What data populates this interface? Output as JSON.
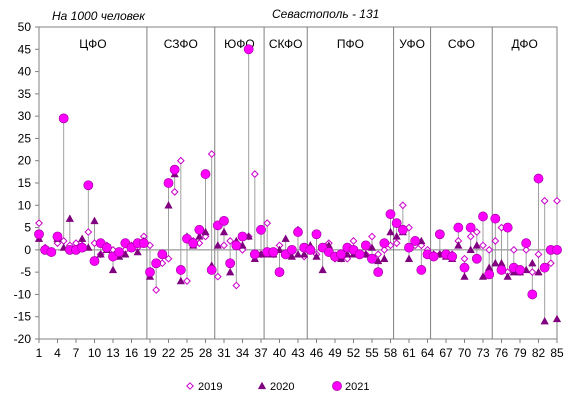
{
  "chart_data": {
    "type": "scatter",
    "title": "",
    "annotations": {
      "left": "На 1000 человек",
      "right": "Севастополь - 131"
    },
    "xlabel": "",
    "ylabel": "",
    "xlim": [
      1,
      85
    ],
    "ylim": [
      -20,
      50
    ],
    "y_ticks": [
      -20,
      -15,
      -10,
      -5,
      0,
      5,
      10,
      15,
      20,
      25,
      30,
      35,
      40,
      45,
      50
    ],
    "x_ticks": [
      1,
      4,
      7,
      10,
      13,
      16,
      19,
      22,
      25,
      28,
      31,
      34,
      37,
      40,
      43,
      46,
      49,
      52,
      55,
      58,
      61,
      64,
      67,
      70,
      73,
      76,
      79,
      82,
      85
    ],
    "x_tick_labels": [
      "1",
      "4",
      "7",
      "10",
      "13",
      "16",
      "19",
      "22",
      "25",
      "28",
      "31",
      "34",
      "37",
      "40",
      "43",
      "46",
      "49",
      "52",
      "55",
      "58",
      "61",
      "64",
      "67",
      "70",
      "73",
      "76",
      "79",
      "82",
      "85"
    ],
    "grid": false,
    "legend_position": "bottom",
    "regions": [
      {
        "name": "ЦФО",
        "start": 1,
        "end": 18
      },
      {
        "name": "СЗФО",
        "start": 19,
        "end": 29
      },
      {
        "name": "ЮФО",
        "start": 30,
        "end": 37
      },
      {
        "name": "СКФО",
        "start": 38,
        "end": 44
      },
      {
        "name": "ПФО",
        "start": 45,
        "end": 58
      },
      {
        "name": "УФО",
        "start": 59,
        "end": 64
      },
      {
        "name": "СФО",
        "start": 65,
        "end": 74
      },
      {
        "name": "ДФО",
        "start": 75,
        "end": 85
      }
    ],
    "series": [
      {
        "name": "2019",
        "marker": "diamond-open",
        "color": "#cc00cc",
        "values": [
          6,
          0.5,
          -0.5,
          1.5,
          2,
          1,
          1.5,
          1,
          4,
          1.5,
          -1,
          1,
          0,
          -1,
          0,
          1,
          0.5,
          3,
          1,
          -9,
          -3,
          -2,
          13,
          20,
          -7,
          2,
          1.5,
          3,
          21.5,
          -6,
          1,
          2,
          -8,
          0,
          3,
          17,
          -1,
          6,
          -1,
          1,
          -1,
          0,
          4.5,
          -1.5,
          0,
          -1,
          0.5,
          1.5,
          -2,
          -2,
          -2,
          2,
          -1,
          -1,
          3,
          -1,
          0,
          1,
          1.5,
          10,
          5,
          1,
          1,
          0,
          -1,
          -1,
          -1,
          -1,
          2,
          -2,
          3,
          4,
          1,
          0,
          2,
          5,
          -5,
          0,
          -5,
          0,
          -5,
          -1,
          11,
          -3,
          11
        ]
      },
      {
        "name": "2020",
        "marker": "triangle",
        "color": "#800080",
        "values": [
          2.5,
          0,
          -0.5,
          2.5,
          0.5,
          7,
          0,
          2.5,
          0.5,
          6.5,
          -1,
          0,
          -4.5,
          -1.5,
          -1,
          0.5,
          -0.5,
          2,
          -6,
          -3,
          -1,
          10,
          17,
          -7,
          3,
          1,
          3,
          4,
          -3.5,
          1,
          4,
          -5,
          2,
          1,
          3,
          -2,
          -1,
          -1,
          -1,
          0,
          2.5,
          -1.5,
          -1,
          -1,
          1,
          -1.5,
          -4.5,
          1,
          -1.5,
          -2,
          -1,
          -1,
          -1,
          -1,
          0.5,
          -2.5,
          -2,
          4,
          3,
          4,
          -2,
          2,
          2,
          -1,
          -1,
          -1,
          -1.5,
          -2,
          1,
          -6,
          0,
          1,
          -6,
          -4,
          -3,
          -3,
          -6,
          -5,
          -5,
          -4.5,
          -3,
          -5,
          -16,
          0,
          -15.5
        ]
      },
      {
        "name": "2021",
        "marker": "circle",
        "color": "#ff00ff",
        "values": [
          3.5,
          0,
          -0.5,
          3,
          29.5,
          0,
          0,
          0.5,
          14.5,
          -2.5,
          1.5,
          0.5,
          -1.5,
          -0.5,
          1.5,
          0.5,
          1.5,
          1.5,
          -5,
          -3,
          -1,
          15,
          18,
          -4.5,
          2.5,
          1.5,
          4.5,
          17,
          -4.5,
          5.5,
          6.5,
          -3,
          1,
          3,
          45,
          -1,
          4.5,
          -0.5,
          -0.5,
          -5,
          -1,
          0,
          4,
          0.5,
          0,
          3.5,
          0.5,
          -0.5,
          -1.5,
          -1,
          0.5,
          0,
          -1,
          1,
          -2,
          -5,
          1.5,
          8,
          6,
          4.5,
          0.5,
          2,
          -4.5,
          -1,
          -1.5,
          3.5,
          -1,
          -1.5,
          5,
          -4,
          5,
          -2,
          7.5,
          -5.5,
          7,
          -4.5,
          5,
          -4,
          -4.5,
          1.5,
          -10,
          16,
          -4,
          0,
          0
        ]
      }
    ]
  }
}
